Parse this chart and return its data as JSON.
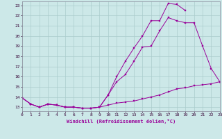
{
  "xlabel": "Windchill (Refroidissement éolien,°C)",
  "bg_color": "#cce8e8",
  "grid_color": "#aacccc",
  "line_color": "#990099",
  "xlim": [
    0,
    23
  ],
  "ylim": [
    12.6,
    23.4
  ],
  "yticks": [
    13,
    14,
    15,
    16,
    17,
    18,
    19,
    20,
    21,
    22,
    23
  ],
  "xticks": [
    0,
    1,
    2,
    3,
    4,
    5,
    6,
    7,
    8,
    9,
    10,
    11,
    12,
    13,
    14,
    15,
    16,
    17,
    18,
    19,
    20,
    21,
    22,
    23
  ],
  "line1_x": [
    0,
    1,
    2,
    3,
    4,
    5,
    6,
    7,
    8,
    9,
    10,
    11,
    12,
    13,
    14,
    15,
    16,
    17,
    18,
    19
  ],
  "line1_y": [
    13.9,
    13.3,
    13.0,
    13.3,
    13.2,
    13.0,
    13.0,
    12.9,
    12.9,
    13.0,
    14.2,
    16.0,
    17.5,
    18.8,
    20.0,
    21.5,
    21.5,
    23.2,
    23.1,
    22.5
  ],
  "line2_x": [
    0,
    1,
    2,
    3,
    4,
    5,
    6,
    7,
    8,
    9,
    10,
    11,
    12,
    13,
    14,
    15,
    16,
    17,
    18,
    19,
    20,
    21,
    22,
    23
  ],
  "line2_y": [
    13.9,
    13.3,
    13.0,
    13.3,
    13.2,
    13.0,
    13.0,
    12.9,
    12.9,
    13.0,
    14.2,
    15.5,
    16.2,
    17.5,
    18.9,
    19.0,
    20.5,
    21.8,
    21.5,
    21.3,
    21.3,
    19.0,
    16.8,
    15.5
  ],
  "line3_x": [
    0,
    1,
    2,
    3,
    4,
    5,
    6,
    7,
    8,
    9,
    10,
    11,
    12,
    13,
    14,
    15,
    16,
    17,
    18,
    19,
    20,
    21,
    22,
    23
  ],
  "line3_y": [
    13.9,
    13.3,
    13.0,
    13.3,
    13.2,
    13.0,
    13.0,
    12.9,
    12.9,
    13.0,
    13.2,
    13.4,
    13.5,
    13.6,
    13.8,
    14.0,
    14.2,
    14.5,
    14.8,
    14.9,
    15.1,
    15.2,
    15.3,
    15.5
  ]
}
